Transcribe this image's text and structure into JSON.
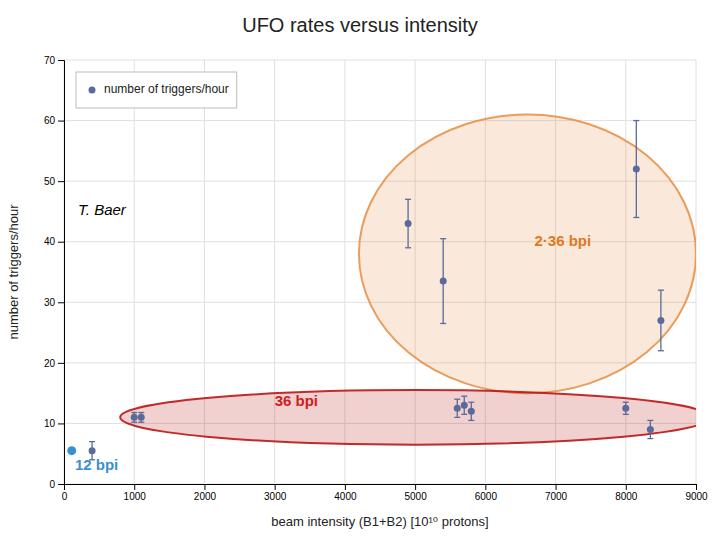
{
  "chart_data": {
    "type": "scatter",
    "title": "UFO rates versus intensity",
    "x_label": "beam intensity (B1+B2) [10¹⁰ protons]",
    "y_label": "number of triggers/hour",
    "xlim": [
      0,
      9000
    ],
    "ylim": [
      0,
      70
    ],
    "xticks": [
      0,
      1000,
      2000,
      3000,
      4000,
      5000,
      6000,
      7000,
      8000,
      9000
    ],
    "yticks": [
      0,
      10,
      20,
      30,
      40,
      50,
      60,
      70
    ],
    "grid": true,
    "legend": "upper left",
    "x": [
      400,
      1000,
      1100,
      4900,
      5400,
      5600,
      5700,
      5800,
      8000,
      8150,
      8350,
      8500
    ],
    "series": [
      {
        "name": "number of triggers/hour",
        "color": "#5a6a9a",
        "marker": "circle",
        "values": [
          5.5,
          11,
          11,
          43,
          33.5,
          12.5,
          13,
          12,
          12.5,
          52,
          9,
          27
        ],
        "errors": [
          1.5,
          0.8,
          0.8,
          4,
          7,
          1.5,
          1.5,
          1.5,
          1.0,
          8,
          1.5,
          5
        ]
      }
    ],
    "ellipses": [
      {
        "x": 6600,
        "y": 38,
        "width": 4800,
        "height": 46,
        "color": "#e8924a"
      },
      {
        "x": 5000,
        "y": 11,
        "width": 8400,
        "height": 9,
        "color": "#bb1515"
      }
    ],
    "annotations": [
      {
        "text": "12 bpi",
        "x": 155,
        "y": 3.0,
        "color": "#3a8fd0",
        "marker": "circle",
        "point_x": 110,
        "point_y": 5.5
      },
      {
        "text": "36 bpi",
        "x": 3000,
        "y": 13.5,
        "color": "#cc2020"
      },
      {
        "text": "2·36 bpi",
        "x": 6700,
        "y": 40,
        "color": "#e07820"
      },
      {
        "text": "T. Baer",
        "x": 200,
        "y": 45,
        "color": "black"
      }
    ]
  }
}
